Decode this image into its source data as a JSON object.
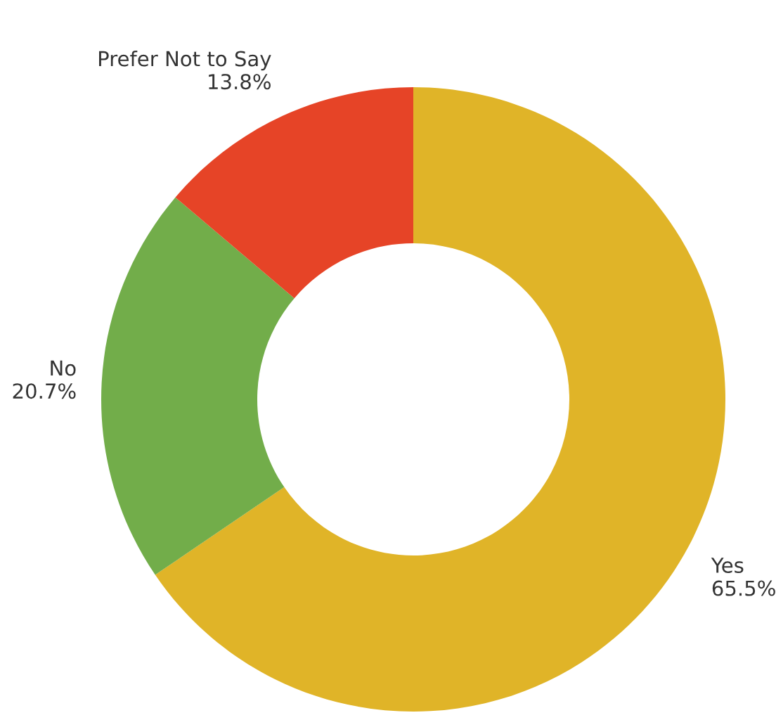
{
  "chart_data": {
    "type": "donut",
    "categories": [
      "Yes",
      "No",
      "Prefer Not to Say"
    ],
    "values": [
      65.5,
      20.7,
      13.8
    ],
    "value_labels": [
      "65.5%",
      "20.7%",
      "13.8%"
    ],
    "colors": [
      "#e0b428",
      "#72ad4a",
      "#e64427"
    ]
  }
}
